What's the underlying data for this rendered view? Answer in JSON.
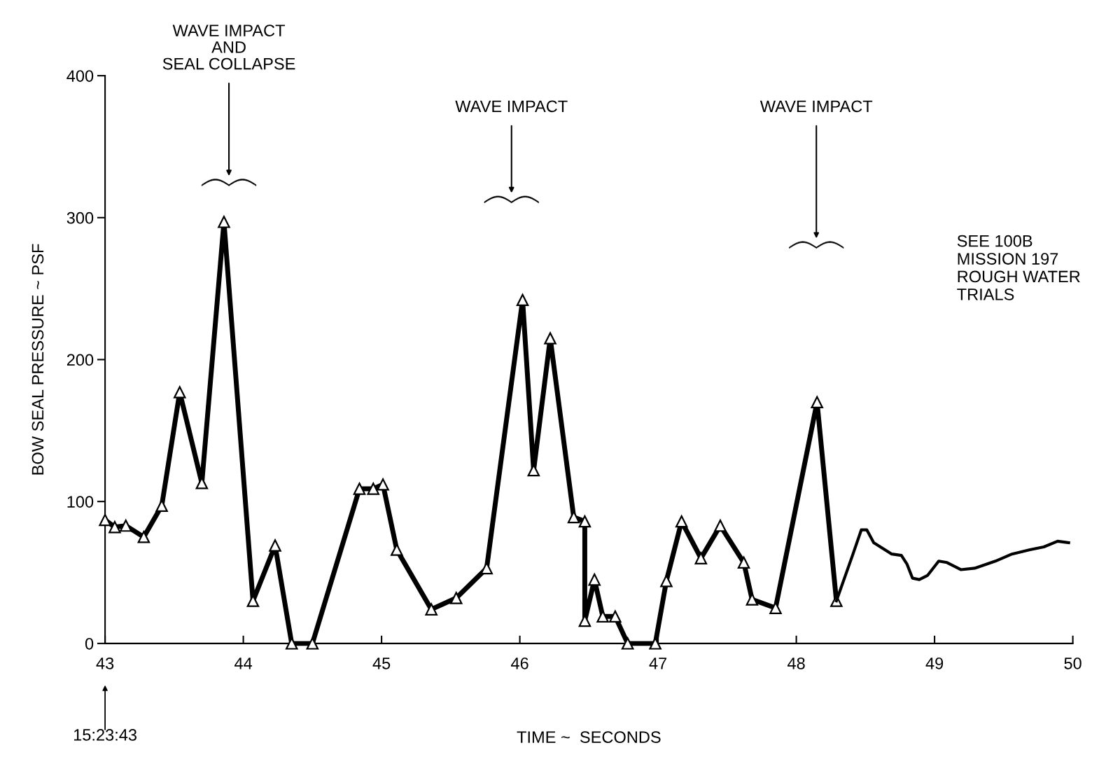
{
  "chart_data": {
    "type": "line",
    "xlabel": "TIME ~  SECONDS",
    "ylabel": "BOW SEAL PRESSURE ~ PSF",
    "xlim": [
      43,
      50
    ],
    "xticks": [
      43,
      44,
      45,
      46,
      47,
      48,
      49,
      50
    ],
    "ylim": [
      0,
      400
    ],
    "yticks": [
      0,
      100,
      200,
      300,
      400
    ],
    "grid": false,
    "legend": false,
    "series": [
      {
        "color": "#000000",
        "marker": "triangle",
        "x": [
          43.0,
          43.07,
          43.15,
          43.28,
          43.41,
          43.54,
          43.7,
          43.86,
          44.07,
          44.23,
          44.35,
          44.5,
          44.84,
          44.94,
          45.01,
          45.11,
          45.36,
          45.54,
          45.76,
          46.02,
          46.1,
          46.22,
          46.39,
          46.47,
          46.47,
          46.54,
          46.6,
          46.69,
          46.78,
          46.98,
          47.06,
          47.17,
          47.31,
          47.45,
          47.62,
          47.68,
          47.85,
          48.15,
          48.29
        ],
        "values": [
          87,
          82,
          83,
          75,
          97,
          177,
          113,
          297,
          30,
          69,
          0,
          0,
          109,
          109,
          112,
          66,
          24,
          32,
          53,
          242,
          122,
          215,
          89,
          86,
          16,
          45,
          19,
          19,
          0,
          0,
          44,
          86,
          60,
          83,
          57,
          31,
          25,
          170,
          30
        ]
      },
      {
        "color": "#000000",
        "marker": "none",
        "x": [
          48.29,
          48.41,
          48.47,
          48.51,
          48.56,
          48.69,
          48.76,
          48.8,
          48.84,
          48.89,
          48.95,
          49.03,
          49.09,
          49.19,
          49.29,
          49.44,
          49.56,
          49.69,
          49.79,
          49.89,
          49.97
        ],
        "values": [
          30,
          63,
          80,
          80,
          71,
          63,
          62,
          56,
          46,
          45,
          48,
          58,
          57,
          52,
          53,
          58,
          63,
          66,
          68,
          72,
          71
        ]
      }
    ],
    "annotations": [
      "WAVE IMPACT\nAND\nSEAL COLLAPSE",
      "WAVE IMPACT",
      "WAVE IMPACT",
      "15:23:43",
      "SEE 100B\nMISSION 197\nROUGH WATER\nTRIALS"
    ]
  }
}
